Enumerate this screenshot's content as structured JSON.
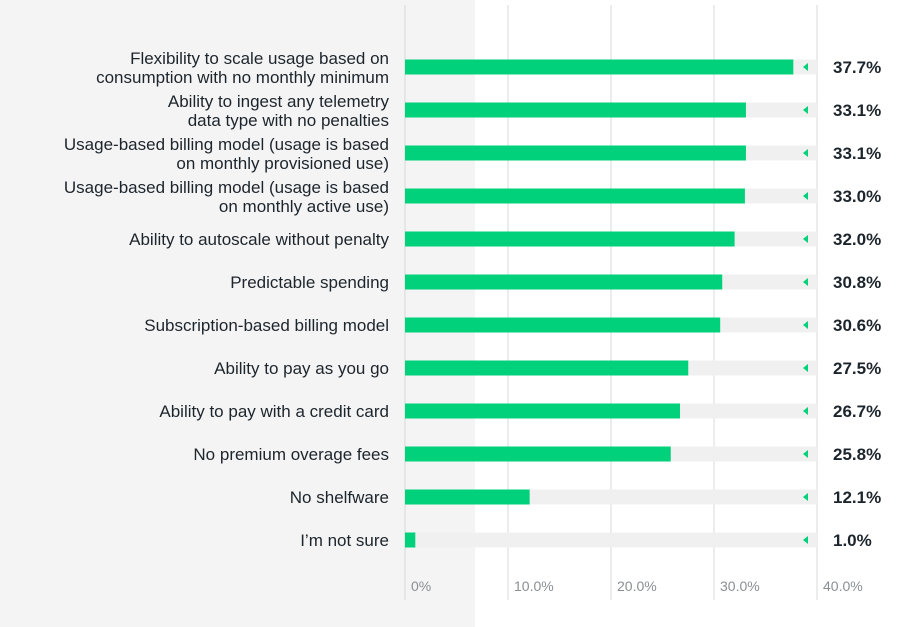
{
  "chart_data": {
    "type": "bar",
    "orientation": "horizontal",
    "title": "",
    "xlabel": "",
    "ylabel": "",
    "xlim": [
      0,
      40
    ],
    "xticks": [
      {
        "value": 0,
        "label": "0%"
      },
      {
        "value": 10,
        "label": "10.0%"
      },
      {
        "value": 20,
        "label": "20.0%"
      },
      {
        "value": 30,
        "label": "30.0%"
      },
      {
        "value": 40,
        "label": "40.0%"
      }
    ],
    "grid": true,
    "categories": [
      [
        "Flexibility to scale usage based on",
        "consumption with no monthly minimum"
      ],
      [
        "Ability to ingest any telemetry",
        "data type with no penalties"
      ],
      [
        "Usage-based billing model (usage is based",
        "on monthly provisioned use)"
      ],
      [
        "Usage-based billing model (usage is based",
        "on monthly active use)"
      ],
      [
        "Ability to autoscale without penalty"
      ],
      [
        "Predictable spending"
      ],
      [
        "Subscription-based billing model"
      ],
      [
        "Ability to pay as you go"
      ],
      [
        "Ability to pay with a credit card"
      ],
      [
        "No premium overage fees"
      ],
      [
        "No shelfware"
      ],
      [
        "I’m not sure"
      ]
    ],
    "values": [
      37.7,
      33.1,
      33.1,
      33.0,
      32.0,
      30.8,
      30.6,
      27.5,
      26.7,
      25.8,
      12.1,
      1.0
    ],
    "value_labels": [
      "37.7%",
      "33.1%",
      "33.1%",
      "33.0%",
      "32.0%",
      "30.8%",
      "30.6%",
      "27.5%",
      "26.7%",
      "25.8%",
      "12.1%",
      "1.0%"
    ],
    "colors": {
      "bar": "#00d17a",
      "track": "#f0f0f0",
      "grid": "#d9d9d9",
      "marker": "#00d17a",
      "text": "#1d252c",
      "tick": "#8a8f94"
    }
  }
}
